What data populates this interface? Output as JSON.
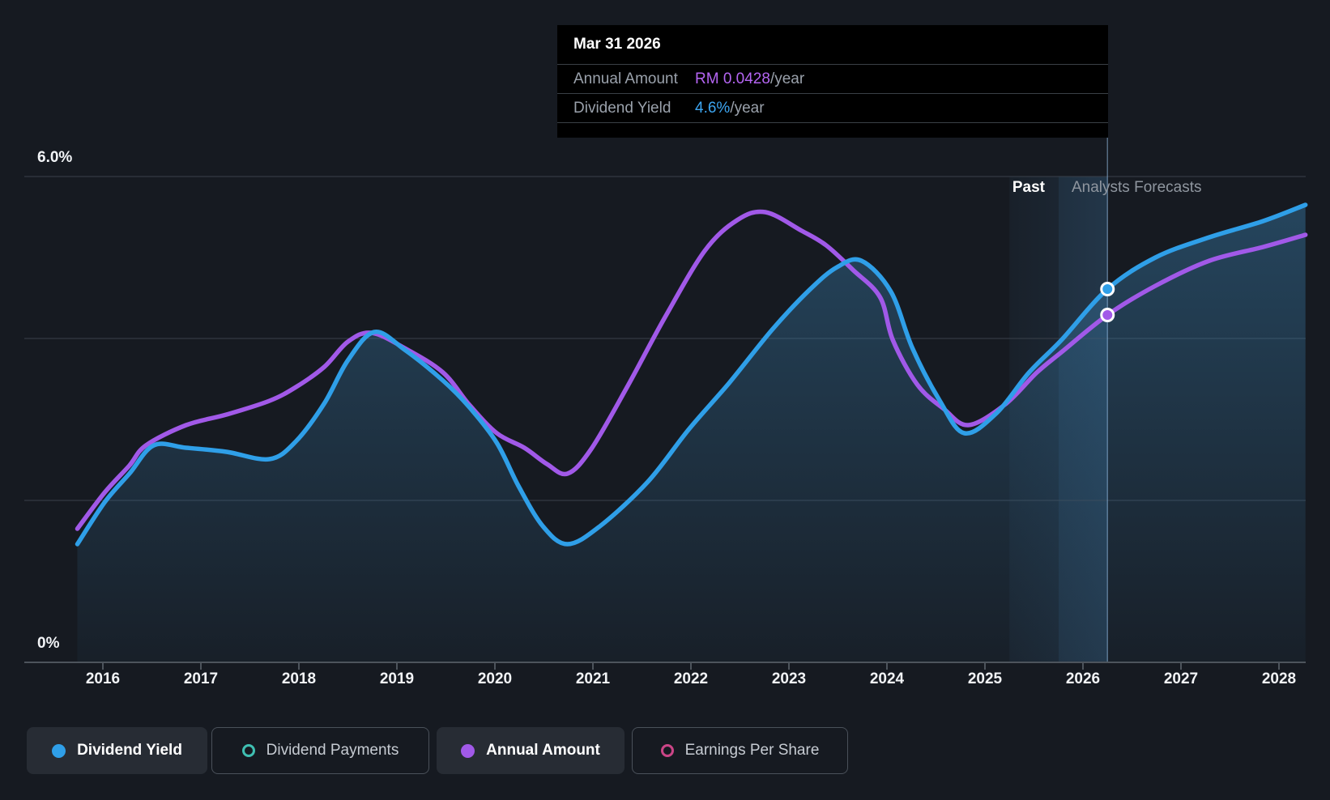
{
  "page": {
    "background": "#161a21"
  },
  "tooltip": {
    "date": "Mar 31 2026",
    "rows": [
      {
        "label": "Annual Amount",
        "value": "RM 0.0428",
        "suffix": "/year",
        "color": "#b465f2"
      },
      {
        "label": "Dividend Yield",
        "value": "4.6%",
        "suffix": "/year",
        "color": "#3da6f2"
      }
    ]
  },
  "annotations": {
    "past": "Past",
    "forecast": "Analysts Forecasts"
  },
  "axis": {
    "years": [
      2016,
      2017,
      2018,
      2019,
      2020,
      2021,
      2022,
      2023,
      2024,
      2025,
      2026,
      2027,
      2028
    ],
    "y_ticks": [
      {
        "pct": 6,
        "label": "6.0%"
      },
      {
        "pct": 4,
        "label": ""
      },
      {
        "pct": 2,
        "label": ""
      },
      {
        "pct": 0,
        "label": "0%"
      }
    ]
  },
  "chart_data": {
    "type": "line",
    "title": "Dividend history and forecast",
    "xlabel": "",
    "ylabel": "",
    "x_range": [
      2015.74,
      2028.27
    ],
    "ylim": [
      0,
      6
    ],
    "grid": true,
    "legend_position": "bottom",
    "hover_x": 2026.25,
    "forecast_start_x": 2025.25,
    "colors": {
      "dividend_yield": "#2f9fe8",
      "annual_amount": "#a159e8",
      "dividend_payments": "#3fbfb2",
      "earnings_per_share": "#cb4587",
      "area_fill": "#3c86b8",
      "band": "#4f9ad6",
      "gridline": "#39404a",
      "axis_line": "#4d545c",
      "crosshair": "#96bee6"
    },
    "series": [
      {
        "name": "Dividend Yield",
        "color": "#2f9fe8",
        "points": [
          [
            2015.74,
            1.46
          ],
          [
            2016.02,
            1.98
          ],
          [
            2016.27,
            2.33
          ],
          [
            2016.52,
            2.68
          ],
          [
            2016.85,
            2.65
          ],
          [
            2017.26,
            2.6
          ],
          [
            2017.7,
            2.51
          ],
          [
            2017.97,
            2.73
          ],
          [
            2018.26,
            3.2
          ],
          [
            2018.5,
            3.73
          ],
          [
            2018.77,
            4.08
          ],
          [
            2019.08,
            3.86
          ],
          [
            2019.47,
            3.48
          ],
          [
            2019.74,
            3.15
          ],
          [
            2020.02,
            2.71
          ],
          [
            2020.24,
            2.18
          ],
          [
            2020.49,
            1.68
          ],
          [
            2020.74,
            1.46
          ],
          [
            2021.07,
            1.68
          ],
          [
            2021.56,
            2.23
          ],
          [
            2021.98,
            2.88
          ],
          [
            2022.39,
            3.45
          ],
          [
            2022.83,
            4.11
          ],
          [
            2023.21,
            4.6
          ],
          [
            2023.49,
            4.88
          ],
          [
            2023.74,
            4.96
          ],
          [
            2024.04,
            4.58
          ],
          [
            2024.26,
            3.88
          ],
          [
            2024.54,
            3.23
          ],
          [
            2024.79,
            2.83
          ],
          [
            2025.12,
            3.08
          ],
          [
            2025.45,
            3.58
          ],
          [
            2025.78,
            3.98
          ],
          [
            2026.25,
            4.61
          ],
          [
            2026.74,
            5.0
          ],
          [
            2027.29,
            5.25
          ],
          [
            2027.84,
            5.45
          ],
          [
            2028.27,
            5.65
          ]
        ]
      },
      {
        "name": "Annual Amount",
        "color": "#a159e8",
        "points": [
          [
            2015.74,
            1.65
          ],
          [
            2016.02,
            2.1
          ],
          [
            2016.27,
            2.43
          ],
          [
            2016.44,
            2.68
          ],
          [
            2016.85,
            2.93
          ],
          [
            2017.26,
            3.06
          ],
          [
            2017.7,
            3.23
          ],
          [
            2017.97,
            3.4
          ],
          [
            2018.26,
            3.65
          ],
          [
            2018.5,
            3.96
          ],
          [
            2018.74,
            4.07
          ],
          [
            2019.08,
            3.88
          ],
          [
            2019.47,
            3.58
          ],
          [
            2019.74,
            3.18
          ],
          [
            2020.02,
            2.83
          ],
          [
            2020.3,
            2.65
          ],
          [
            2020.53,
            2.45
          ],
          [
            2020.74,
            2.33
          ],
          [
            2020.98,
            2.63
          ],
          [
            2021.34,
            3.38
          ],
          [
            2021.73,
            4.25
          ],
          [
            2022.14,
            5.08
          ],
          [
            2022.47,
            5.46
          ],
          [
            2022.76,
            5.56
          ],
          [
            2023.13,
            5.33
          ],
          [
            2023.38,
            5.15
          ],
          [
            2023.65,
            4.85
          ],
          [
            2023.93,
            4.51
          ],
          [
            2024.06,
            3.98
          ],
          [
            2024.31,
            3.43
          ],
          [
            2024.58,
            3.13
          ],
          [
            2024.83,
            2.93
          ],
          [
            2025.2,
            3.18
          ],
          [
            2025.53,
            3.58
          ],
          [
            2025.78,
            3.83
          ],
          [
            2026.25,
            4.29
          ],
          [
            2026.74,
            4.65
          ],
          [
            2027.29,
            4.96
          ],
          [
            2027.84,
            5.13
          ],
          [
            2028.27,
            5.28
          ]
        ]
      }
    ],
    "markers": [
      {
        "series": "Dividend Yield",
        "x": 2026.25,
        "y": 4.61,
        "color": "#2f9fe8"
      },
      {
        "series": "Annual Amount",
        "x": 2026.25,
        "y": 4.29,
        "color": "#a159e8"
      }
    ]
  },
  "legend": {
    "items": [
      {
        "label": "Dividend Yield",
        "marker": "dot",
        "color": "#2f9fe8",
        "active": true
      },
      {
        "label": "Dividend Payments",
        "marker": "ring",
        "color": "#3fbfb2",
        "active": false
      },
      {
        "label": "Annual Amount",
        "marker": "dot",
        "color": "#a159e8",
        "active": true
      },
      {
        "label": "Earnings Per Share",
        "marker": "ring",
        "color": "#cb4587",
        "active": false
      }
    ]
  }
}
